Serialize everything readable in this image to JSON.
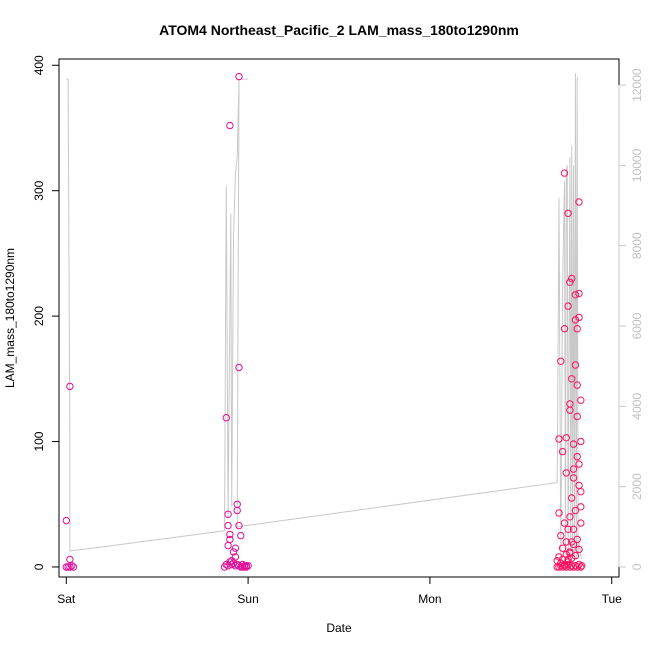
{
  "chart_data": {
    "type": "scatter",
    "title": "ATOM4 Northeast_Pacific_2 LAM_mass_180to1290nm",
    "xlabel": "Date",
    "ylabel": "LAM_mass_180to1290nm",
    "x_ticks": [
      "Sat",
      "Sun",
      "Mon",
      "Tue"
    ],
    "x_tick_days": [
      0,
      1,
      2,
      3
    ],
    "xlim": [
      -0.04,
      3.04
    ],
    "ylim": [
      -8,
      405
    ],
    "y_ticks": [
      0,
      100,
      200,
      300,
      400
    ],
    "y2lim": [
      -250,
      12650
    ],
    "y2_ticks": [
      0,
      2000,
      4000,
      6000,
      8000,
      10000,
      12000
    ],
    "grid": false,
    "series": [
      {
        "kind": "scatter",
        "color": "#e0109a",
        "points": [
          [
            0.0,
            37
          ],
          [
            0.02,
            144
          ],
          [
            0.02,
            6
          ],
          [
            0.0,
            0
          ],
          [
            0.01,
            0
          ],
          [
            0.02,
            0
          ],
          [
            0.03,
            1
          ],
          [
            0.04,
            0
          ],
          [
            0.88,
            119
          ],
          [
            0.89,
            42
          ],
          [
            0.89,
            33
          ],
          [
            0.89,
            17
          ],
          [
            0.9,
            352
          ],
          [
            0.9,
            26
          ],
          [
            0.9,
            22
          ],
          [
            0.91,
            5
          ],
          [
            0.92,
            12
          ],
          [
            0.93,
            8
          ],
          [
            0.93,
            15
          ],
          [
            0.94,
            50
          ],
          [
            0.94,
            45
          ],
          [
            0.95,
            391
          ],
          [
            0.95,
            159
          ],
          [
            0.95,
            33
          ],
          [
            0.96,
            25
          ],
          [
            0.97,
            2
          ],
          [
            0.98,
            0
          ],
          [
            0.99,
            1
          ],
          [
            0.87,
            0
          ],
          [
            0.88,
            2
          ],
          [
            0.89,
            1
          ],
          [
            0.9,
            4
          ],
          [
            0.91,
            2
          ],
          [
            0.92,
            3
          ],
          [
            0.93,
            1
          ],
          [
            0.94,
            2
          ],
          [
            0.95,
            1
          ],
          [
            0.96,
            0
          ],
          [
            0.97,
            0
          ],
          [
            0.98,
            1
          ],
          [
            0.99,
            0
          ],
          [
            1.0,
            1
          ]
        ]
      },
      {
        "kind": "scatter",
        "color": "#ff1060",
        "points": [
          [
            2.71,
            43
          ],
          [
            2.71,
            102
          ],
          [
            2.72,
            164
          ],
          [
            2.73,
            92
          ],
          [
            2.74,
            314
          ],
          [
            2.74,
            190
          ],
          [
            2.75,
            75
          ],
          [
            2.75,
            103
          ],
          [
            2.76,
            282
          ],
          [
            2.76,
            208
          ],
          [
            2.77,
            130
          ],
          [
            2.77,
            125
          ],
          [
            2.77,
            227
          ],
          [
            2.78,
            230
          ],
          [
            2.78,
            150
          ],
          [
            2.79,
            98
          ],
          [
            2.79,
            71
          ],
          [
            2.8,
            217
          ],
          [
            2.8,
            197
          ],
          [
            2.81,
            190
          ],
          [
            2.81,
            145
          ],
          [
            2.82,
            199
          ],
          [
            2.82,
            291
          ],
          [
            2.82,
            218
          ],
          [
            2.83,
            133
          ],
          [
            2.83,
            100
          ],
          [
            2.83,
            60
          ],
          [
            2.82,
            82
          ],
          [
            2.81,
            120
          ],
          [
            2.8,
            161
          ],
          [
            2.79,
            78
          ],
          [
            2.78,
            55
          ],
          [
            2.77,
            40
          ],
          [
            2.76,
            30
          ],
          [
            2.75,
            20
          ],
          [
            2.74,
            35
          ],
          [
            2.73,
            15
          ],
          [
            2.72,
            25
          ],
          [
            2.7,
            5
          ],
          [
            2.71,
            8
          ],
          [
            2.72,
            3
          ],
          [
            2.73,
            6
          ],
          [
            2.74,
            2
          ],
          [
            2.75,
            10
          ],
          [
            2.76,
            4
          ],
          [
            2.77,
            12
          ],
          [
            2.78,
            7
          ],
          [
            2.79,
            18
          ],
          [
            2.8,
            9
          ],
          [
            2.81,
            22
          ],
          [
            2.82,
            14
          ],
          [
            2.83,
            35
          ],
          [
            2.83,
            48
          ],
          [
            2.82,
            65
          ],
          [
            2.81,
            88
          ],
          [
            2.8,
            45
          ],
          [
            2.79,
            30
          ],
          [
            2.78,
            20
          ],
          [
            2.77,
            11
          ],
          [
            2.76,
            6
          ],
          [
            2.7,
            0
          ],
          [
            2.71,
            0
          ],
          [
            2.72,
            1
          ],
          [
            2.73,
            0
          ],
          [
            2.74,
            1
          ],
          [
            2.75,
            0
          ],
          [
            2.76,
            2
          ],
          [
            2.77,
            0
          ],
          [
            2.78,
            1
          ],
          [
            2.79,
            0
          ],
          [
            2.8,
            1
          ],
          [
            2.81,
            0
          ],
          [
            2.82,
            2
          ],
          [
            2.83,
            0
          ],
          [
            2.835,
            1
          ]
        ]
      },
      {
        "kind": "line",
        "axis": "right",
        "color": "#c8c8c8",
        "points": [
          [
            0.0,
            12150
          ],
          [
            0.01,
            12150
          ],
          [
            0.01,
            12150
          ],
          [
            0.02,
            3000
          ],
          [
            0.02,
            400
          ],
          [
            0.03,
            400
          ],
          [
            0.87,
            900
          ],
          [
            0.88,
            9500
          ],
          [
            0.89,
            1200
          ],
          [
            0.9,
            6500
          ],
          [
            0.905,
            8800
          ],
          [
            0.91,
            1500
          ],
          [
            0.92,
            8200
          ],
          [
            0.93,
            9800
          ],
          [
            0.94,
            10200
          ],
          [
            0.95,
            12150
          ],
          [
            1.0,
            12150
          ],
          [
            0.95,
            12150
          ],
          [
            0.94,
            1000
          ],
          [
            2.7,
            2100
          ],
          [
            2.71,
            9200
          ],
          [
            2.72,
            200
          ],
          [
            2.73,
            7000
          ],
          [
            2.74,
            9600
          ],
          [
            2.745,
            300
          ],
          [
            2.75,
            9900
          ],
          [
            2.755,
            10000
          ],
          [
            2.76,
            200
          ],
          [
            2.77,
            10200
          ],
          [
            2.775,
            300
          ],
          [
            2.78,
            10500
          ],
          [
            2.785,
            200
          ],
          [
            2.79,
            10000
          ],
          [
            2.795,
            250
          ],
          [
            2.8,
            12300
          ],
          [
            2.805,
            200
          ],
          [
            2.81,
            12200
          ],
          [
            2.815,
            300
          ],
          [
            2.82,
            600
          ],
          [
            2.83,
            300
          ],
          [
            2.835,
            200
          ]
        ]
      }
    ]
  }
}
